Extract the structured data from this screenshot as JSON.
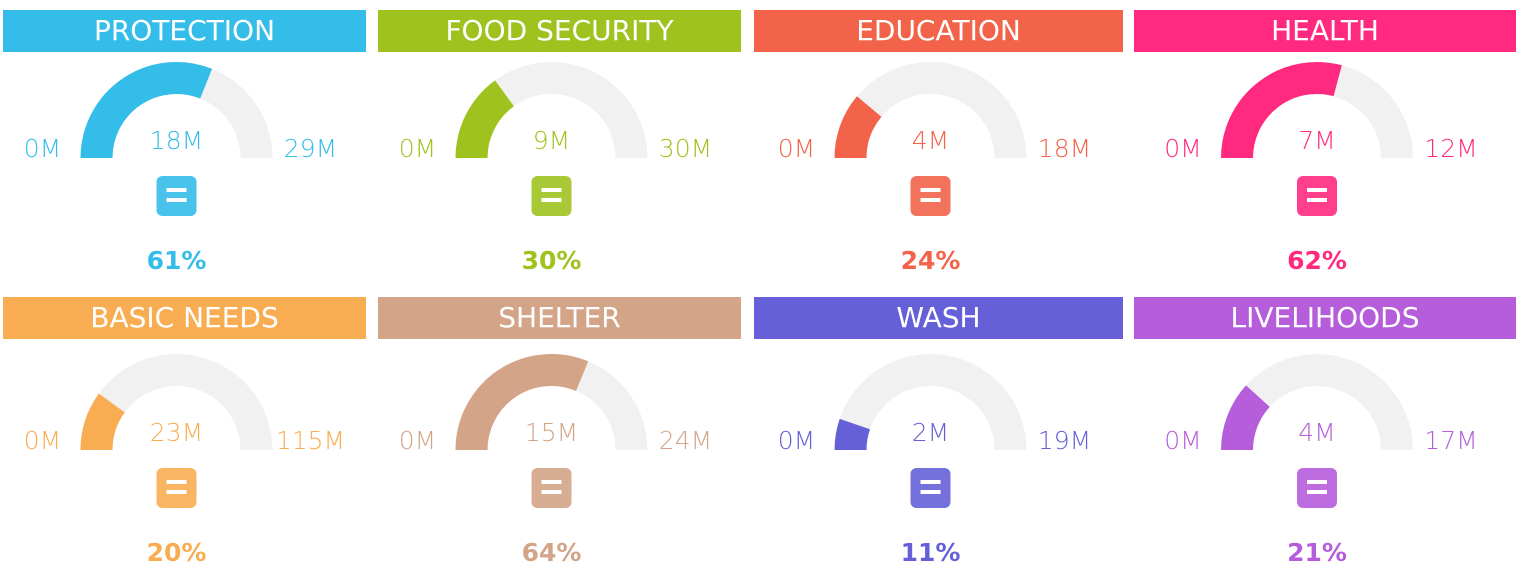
{
  "chart_data": [
    {
      "type": "gauge",
      "title": "PROTECTION",
      "color": "#35bdea",
      "xlim": [
        0,
        29
      ],
      "xticks": [
        {
          "value": 0,
          "label": "0M"
        },
        {
          "value": 29,
          "label": "29M"
        }
      ],
      "values": [
        18
      ],
      "value_labels": [
        "18M"
      ],
      "percent": {
        "value": 61,
        "label": "61%"
      }
    },
    {
      "type": "gauge",
      "title": "FOOD SECURITY",
      "color": "#a0c21f",
      "xlim": [
        0,
        30
      ],
      "xticks": [
        {
          "value": 0,
          "label": "0M"
        },
        {
          "value": 30,
          "label": "30M"
        }
      ],
      "values": [
        9
      ],
      "value_labels": [
        "9M"
      ],
      "percent": {
        "value": 30,
        "label": "30%"
      }
    },
    {
      "type": "gauge",
      "title": "EDUCATION",
      "color": "#f2634a",
      "xlim": [
        0,
        18
      ],
      "xticks": [
        {
          "value": 0,
          "label": "0M"
        },
        {
          "value": 18,
          "label": "18M"
        }
      ],
      "values": [
        4
      ],
      "value_labels": [
        "4M"
      ],
      "percent": {
        "value": 24,
        "label": "24%"
      }
    },
    {
      "type": "gauge",
      "title": "HEALTH",
      "color": "#ff2a7f",
      "xlim": [
        0,
        12
      ],
      "xticks": [
        {
          "value": 0,
          "label": "0M"
        },
        {
          "value": 12,
          "label": "12M"
        }
      ],
      "values": [
        7
      ],
      "value_labels": [
        "7M"
      ],
      "percent": {
        "value": 62,
        "label": "62%"
      }
    },
    {
      "type": "gauge",
      "title": "BASIC NEEDS",
      "color": "#f9ad52",
      "xlim": [
        0,
        115
      ],
      "xticks": [
        {
          "value": 0,
          "label": "0M"
        },
        {
          "value": 115,
          "label": "115M"
        }
      ],
      "values": [
        23
      ],
      "value_labels": [
        "23M"
      ],
      "percent": {
        "value": 20,
        "label": "20%"
      }
    },
    {
      "type": "gauge",
      "title": "SHELTER",
      "color": "#d3a487",
      "xlim": [
        0,
        24
      ],
      "xticks": [
        {
          "value": 0,
          "label": "0M"
        },
        {
          "value": 24,
          "label": "24M"
        }
      ],
      "values": [
        15
      ],
      "value_labels": [
        "15M"
      ],
      "percent": {
        "value": 64,
        "label": "64%"
      }
    },
    {
      "type": "gauge",
      "title": "WASH",
      "color": "#6560d8",
      "xlim": [
        0,
        19
      ],
      "xticks": [
        {
          "value": 0,
          "label": "0M"
        },
        {
          "value": 19,
          "label": "19M"
        }
      ],
      "values": [
        2
      ],
      "value_labels": [
        "2M"
      ],
      "percent": {
        "value": 11,
        "label": "11%"
      }
    },
    {
      "type": "gauge",
      "title": "LIVELIHOODS",
      "color": "#b65ddb",
      "xlim": [
        0,
        17
      ],
      "xticks": [
        {
          "value": 0,
          "label": "0M"
        },
        {
          "value": 17,
          "label": "17M"
        }
      ],
      "values": [
        4
      ],
      "value_labels": [
        "4M"
      ],
      "percent": {
        "value": 21,
        "label": "21%"
      }
    }
  ]
}
